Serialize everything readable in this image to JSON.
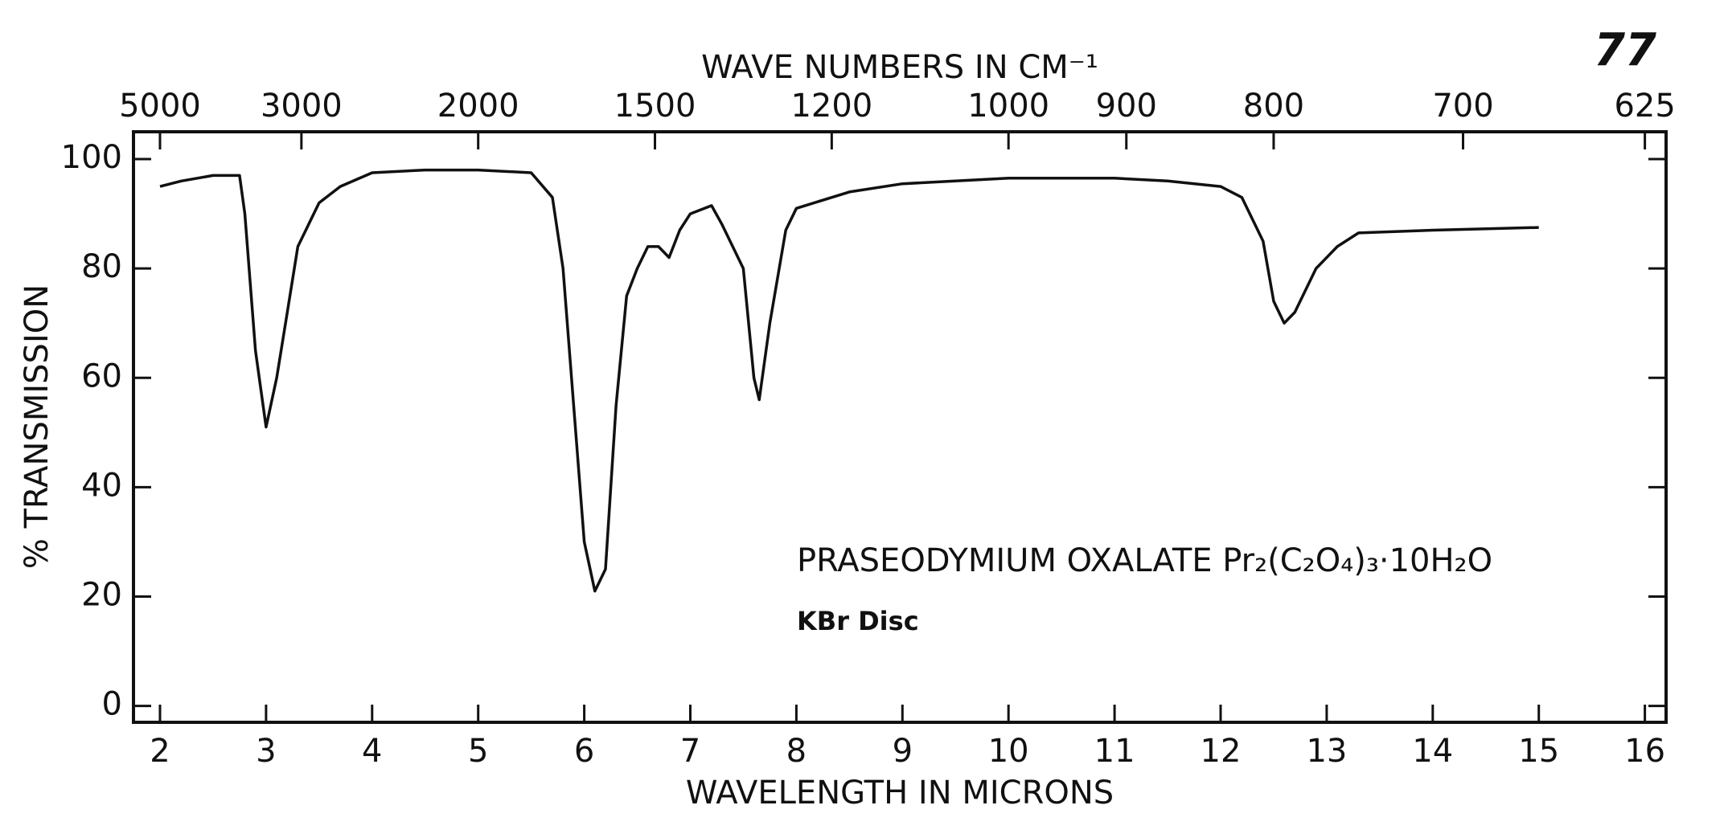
{
  "chart_data": {
    "type": "line",
    "page_number": "77",
    "x2_title": "WAVE NUMBERS IN CM⁻¹",
    "x_title": "WAVELENGTH IN MICRONS",
    "y_title": "% TRANSMISSION",
    "annotations": [
      "PRASEODYMIUM OXALATE Pr₂(C₂O₄)₃·10H₂O",
      "KBr Disc"
    ],
    "x": [
      2.0,
      2.2,
      2.5,
      2.75,
      2.8,
      2.9,
      3.0,
      3.1,
      3.2,
      3.3,
      3.5,
      3.7,
      4.0,
      4.5,
      5.0,
      5.5,
      5.7,
      5.8,
      5.9,
      6.0,
      6.1,
      6.2,
      6.3,
      6.4,
      6.5,
      6.6,
      6.7,
      6.8,
      6.9,
      7.0,
      7.2,
      7.3,
      7.5,
      7.6,
      7.65,
      7.75,
      7.9,
      8.0,
      8.5,
      9.0,
      10.0,
      11.0,
      11.5,
      12.0,
      12.2,
      12.4,
      12.5,
      12.6,
      12.7,
      12.9,
      13.1,
      13.3,
      14.0,
      15.0
    ],
    "series": [
      {
        "color": "#111111",
        "values": [
          95,
          96,
          97,
          97,
          90,
          65,
          51,
          60,
          72,
          84,
          92,
          95,
          97.5,
          98,
          98,
          97.5,
          93,
          80,
          55,
          30,
          21,
          25,
          55,
          75,
          80,
          84,
          84,
          82,
          87,
          90,
          91.5,
          88,
          80,
          60,
          56,
          70,
          87,
          91,
          94,
          95.5,
          96.5,
          96.5,
          96,
          95,
          93,
          85,
          74,
          70,
          72,
          80,
          84,
          86.5,
          87,
          87.5
        ]
      }
    ],
    "xlim": [
      1.75,
      16.2
    ],
    "xticks": [
      2,
      3,
      4,
      5,
      6,
      7,
      8,
      9,
      10,
      11,
      12,
      13,
      14,
      15,
      16
    ],
    "ylim": [
      -3,
      105
    ],
    "yticks": [
      0,
      20,
      40,
      60,
      80,
      100
    ],
    "x2scale": "reciprocal",
    "x2factor": 10000,
    "x2ticks": [
      5000,
      3000,
      2000,
      1500,
      1200,
      1000,
      900,
      800,
      700,
      625
    ],
    "grid": false
  }
}
